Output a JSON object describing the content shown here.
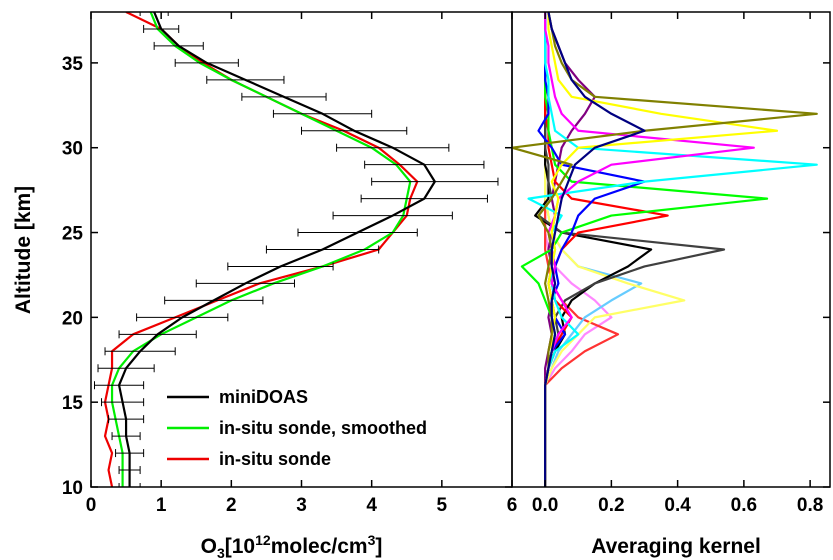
{
  "chart_data": [
    {
      "type": "line",
      "ylabel": "Altitude [km]",
      "xlabel_parts": [
        "O",
        "3",
        "[10",
        "12",
        "molec/cm",
        "3",
        "]"
      ],
      "xlim": [
        0,
        6
      ],
      "xticks": [
        0,
        1,
        2,
        3,
        4,
        5,
        6
      ],
      "ylim": [
        10,
        38
      ],
      "yticks": [
        10,
        15,
        20,
        25,
        30,
        35
      ],
      "legend": "lower right",
      "y": [
        10,
        11,
        12,
        13,
        14,
        15,
        16,
        17,
        18,
        19,
        20,
        21,
        22,
        23,
        24,
        25,
        26,
        27,
        28,
        29,
        30,
        31,
        32,
        33,
        34,
        35,
        36,
        37,
        38
      ],
      "series": [
        {
          "name": "miniDOAS",
          "color": "#000000",
          "values": [
            0.55,
            0.55,
            0.55,
            0.5,
            0.5,
            0.45,
            0.4,
            0.5,
            0.7,
            0.95,
            1.3,
            1.75,
            2.2,
            2.7,
            3.3,
            3.8,
            4.3,
            4.75,
            4.9,
            4.75,
            4.3,
            3.75,
            3.3,
            2.75,
            2.2,
            1.65,
            1.25,
            1.0,
            0.9
          ],
          "errors": [
            0.15,
            0.15,
            0.2,
            0.2,
            0.25,
            0.3,
            0.35,
            0.4,
            0.5,
            0.55,
            0.65,
            0.7,
            0.7,
            0.75,
            0.8,
            0.85,
            0.85,
            0.9,
            0.9,
            0.85,
            0.8,
            0.75,
            0.7,
            0.6,
            0.55,
            0.45,
            0.35,
            0.25,
            0.2
          ]
        },
        {
          "name": "in-situ sonde, smoothed",
          "color": "#00ee00",
          "values": [
            0.45,
            0.45,
            0.45,
            0.4,
            0.35,
            0.3,
            0.3,
            0.4,
            0.6,
            1.0,
            1.5,
            2.0,
            2.6,
            3.3,
            3.9,
            4.3,
            4.45,
            4.5,
            4.55,
            4.35,
            4.0,
            3.5,
            3.0,
            2.5,
            2.0,
            1.55,
            1.2,
            0.95,
            0.85
          ]
        },
        {
          "name": "in-situ sonde",
          "color": "#ee0000",
          "values": [
            0.3,
            0.25,
            0.3,
            0.2,
            0.25,
            0.2,
            0.25,
            0.3,
            0.3,
            0.6,
            1.2,
            1.8,
            2.4,
            3.3,
            4.1,
            4.3,
            4.5,
            4.55,
            4.65,
            4.4,
            4.1,
            3.6,
            3.0,
            2.5,
            2.0,
            1.6,
            1.25,
            1.0,
            0.5
          ]
        }
      ]
    },
    {
      "type": "line",
      "xlabel": "Averaging kernel",
      "xlim": [
        -0.1,
        0.86
      ],
      "xticks": [
        {
          "value": 0,
          "label": "0.0"
        },
        0.2,
        0.4,
        0.6,
        0.8
      ],
      "ylim": [
        10,
        38
      ],
      "y": [
        10,
        11,
        12,
        13,
        14,
        15,
        16,
        17,
        18,
        19,
        20,
        21,
        22,
        23,
        24,
        25,
        26,
        27,
        28,
        29,
        30,
        31,
        32,
        33,
        34,
        35,
        36,
        37,
        38
      ],
      "series": [
        {
          "color": "#000080",
          "values": [
            0,
            0,
            0,
            0,
            0,
            0,
            0,
            0.01,
            0.02,
            0.03,
            0.02,
            0.02,
            0.03,
            0.02,
            0.02,
            0.03,
            0.04,
            0.05,
            0.07,
            0.09,
            0.15,
            0.3,
            0.2,
            0.12,
            0.08,
            0.06,
            0.04,
            0.02,
            0.01
          ]
        },
        {
          "color": "#808000",
          "values": [
            0,
            0,
            0,
            0,
            0,
            0,
            0,
            0.01,
            0.01,
            0.02,
            0.02,
            0.01,
            0.0,
            0.01,
            0.02,
            0.01,
            -0.02,
            0.02,
            0.05,
            0.08,
            -0.1,
            0.3,
            0.82,
            0.15,
            0.08,
            0.05,
            0.03,
            0.02,
            0.01
          ]
        },
        {
          "color": "#ffff00",
          "values": [
            0,
            0,
            0,
            0,
            0,
            0,
            0,
            0.01,
            0.02,
            0.02,
            0.03,
            0.02,
            0.01,
            0.02,
            0.03,
            0.02,
            0.03,
            0.04,
            0.02,
            0.05,
            0.1,
            0.7,
            0.35,
            0.08,
            0.04,
            0.03,
            0.02,
            0.01,
            0.01
          ]
        },
        {
          "color": "#ff00ff",
          "values": [
            0,
            0,
            0,
            0,
            0,
            0,
            0,
            0.01,
            0.02,
            0.04,
            0.08,
            0.05,
            0.02,
            0.03,
            0.02,
            0.01,
            0.03,
            0.04,
            0.1,
            0.2,
            0.63,
            0.1,
            0.05,
            0.03,
            0.02,
            0.01,
            0.01,
            0,
            0
          ]
        },
        {
          "color": "#00ffff",
          "values": [
            0,
            0,
            0,
            0,
            0,
            0,
            0,
            0.01,
            0.03,
            0.1,
            0.05,
            0.03,
            0.02,
            0.02,
            0.03,
            0.02,
            0.05,
            -0.05,
            0.3,
            0.82,
            0.1,
            0.03,
            0.02,
            0.01,
            0.01,
            0,
            0,
            0,
            0
          ]
        },
        {
          "color": "#0000ff",
          "values": [
            0,
            0,
            0,
            0,
            0,
            0,
            0,
            0.01,
            0.02,
            0.06,
            0.03,
            0.02,
            0.04,
            0.03,
            0.05,
            0.08,
            0.1,
            0.15,
            0.3,
            0.05,
            0.02,
            -0.02,
            0.01,
            0.01,
            0,
            0,
            0,
            0,
            0
          ]
        },
        {
          "color": "#00ff00",
          "values": [
            0,
            0,
            0,
            0,
            0,
            0,
            0,
            0.01,
            0.02,
            0.03,
            0.02,
            0.0,
            -0.02,
            -0.07,
            0.02,
            0.05,
            0.2,
            0.67,
            0.08,
            0.03,
            0.02,
            0.01,
            0.01,
            0,
            0,
            0,
            0,
            0,
            0
          ]
        },
        {
          "color": "#ff0000",
          "values": [
            0,
            0,
            0,
            0,
            0,
            0,
            0,
            0.01,
            0.02,
            0.05,
            0.08,
            0.03,
            0.02,
            0.03,
            0.05,
            0.1,
            0.37,
            0.08,
            0.03,
            0.02,
            0.01,
            0.01,
            0,
            0,
            0,
            0,
            0,
            0,
            0
          ]
        },
        {
          "color": "#404040",
          "values": [
            0,
            0,
            0,
            0,
            0,
            0,
            0,
            0.01,
            0.02,
            0.04,
            0.03,
            0.06,
            0.15,
            0.3,
            0.54,
            0.05,
            -0.02,
            0.02,
            0.01,
            0.01,
            0,
            0,
            0,
            0,
            0,
            0,
            0,
            0,
            0
          ]
        },
        {
          "color": "#000000",
          "values": [
            0,
            0,
            0,
            0,
            0,
            0,
            0,
            0.01,
            0.03,
            0.06,
            0.05,
            0.08,
            0.15,
            0.25,
            0.32,
            0.05,
            -0.03,
            0.01,
            0.01,
            0,
            0,
            0,
            0,
            0,
            0,
            0,
            0,
            0,
            0
          ]
        },
        {
          "color": "#ffff66",
          "values": [
            0,
            0,
            0,
            0,
            0,
            0,
            0,
            0.02,
            0.05,
            0.1,
            0.15,
            0.42,
            0.25,
            0.1,
            0.05,
            0.02,
            0.01,
            0,
            0,
            0,
            0,
            0,
            0,
            0,
            0,
            0,
            0,
            0,
            0
          ]
        },
        {
          "color": "#66ccff",
          "values": [
            0,
            0,
            0,
            0,
            0,
            0,
            0,
            0.02,
            0.04,
            0.08,
            0.12,
            0.2,
            0.29,
            0.1,
            0.05,
            0.02,
            0.01,
            0,
            0,
            0,
            0,
            0,
            0,
            0,
            0,
            0,
            0,
            0,
            0
          ]
        },
        {
          "color": "#ff3333",
          "values": [
            0,
            0,
            0,
            0,
            0,
            0,
            0,
            0.05,
            0.12,
            0.22,
            0.1,
            0.05,
            0.02,
            0.01,
            0,
            0,
            0,
            0,
            0,
            0,
            0,
            0,
            0,
            0,
            0,
            0,
            0,
            0,
            0
          ]
        },
        {
          "color": "#800080",
          "values": [
            0,
            0,
            0,
            0,
            0,
            0,
            0,
            0.0,
            0.01,
            0.02,
            0.01,
            0.02,
            0.01,
            0.02,
            0.01,
            0.02,
            0.03,
            0.02,
            0.03,
            0.04,
            0.05,
            0.08,
            0.12,
            0.15,
            0.1,
            0.06,
            0.04,
            0.02,
            0.01
          ]
        },
        {
          "color": "#ff88ff",
          "values": [
            0,
            0,
            0,
            0,
            0,
            0,
            0,
            0.03,
            0.08,
            0.12,
            0.2,
            0.15,
            0.08,
            0.03,
            0.01,
            0,
            0,
            0,
            0,
            0,
            0,
            0,
            0,
            0,
            0,
            0,
            0,
            0,
            0
          ]
        }
      ]
    }
  ]
}
